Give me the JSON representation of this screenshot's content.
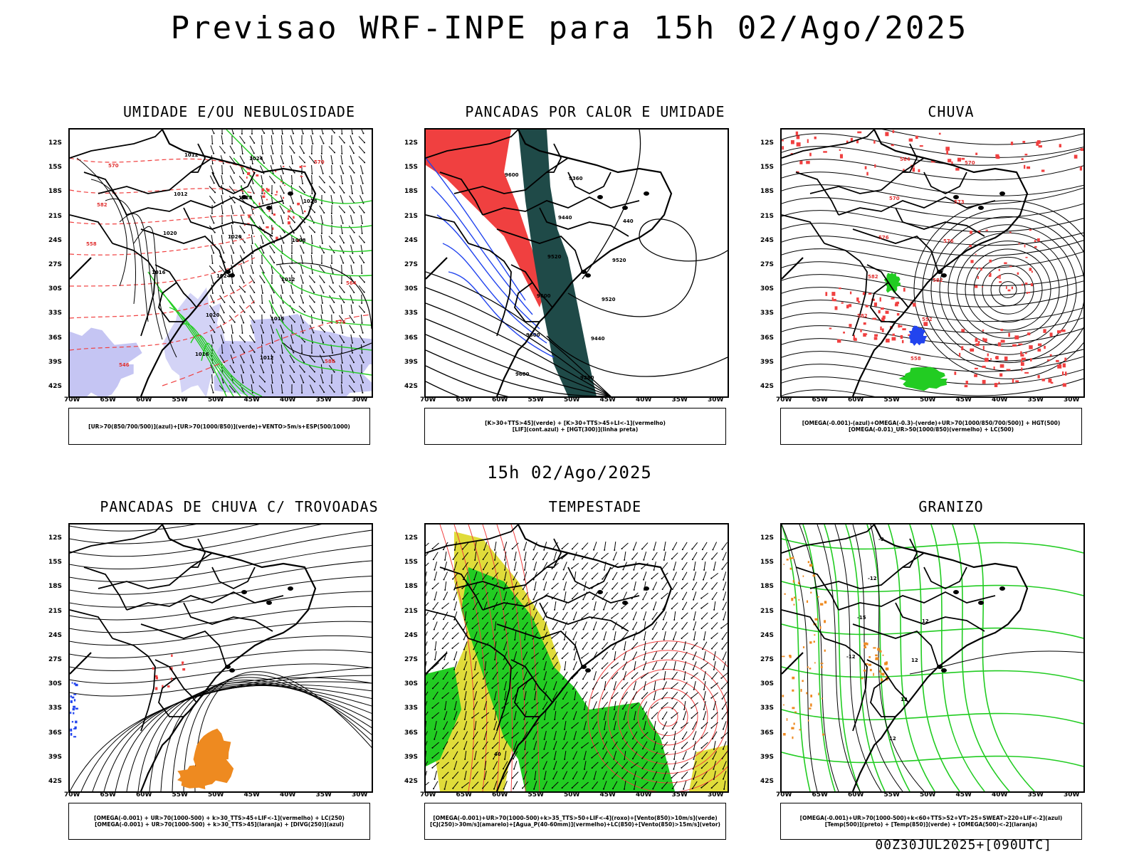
{
  "title": "Previsao WRF-INPE  para 15h 02/Ago/2025",
  "mid_title": "15h 02/Ago/2025",
  "footer": "00Z30JUL2025+[090UTC]",
  "axes": {
    "lat_labels": [
      "12S",
      "15S",
      "18S",
      "21S",
      "24S",
      "27S",
      "30S",
      "33S",
      "36S",
      "39S",
      "42S"
    ],
    "lon_labels": [
      "70W",
      "65W",
      "60W",
      "55W",
      "50W",
      "45W",
      "40W",
      "35W",
      "30W"
    ]
  },
  "panels": [
    {
      "title": "UMIDADE E/OU NEBULOSIDADE",
      "legend": [
        "[UR>70(850/700/500)](azul)+[UR>70(1000/850)](verde)+VENTO>5m/s+ESP(500/1000)"
      ],
      "contour_labels": [
        "1016",
        "1020",
        "1012",
        "1012",
        "1016",
        "1020",
        "1024",
        "1020",
        "1028",
        "1024",
        "1012",
        "1016",
        "1012",
        "1008",
        "1028",
        "570",
        "588",
        "576",
        "564",
        "558",
        "582",
        "570",
        "546"
      ]
    },
    {
      "title": "PANCADAS POR CALOR E UMIDADE",
      "legend": [
        "[K>30+TTS>45](verde) + [K>30+TTS>45+LI<-1](vermelho)",
        "[LIF](cont.azul) + [HGT(300)](linha preta)"
      ],
      "contour_labels": [
        "9600",
        "9600",
        "9600",
        "9600",
        "9520",
        "9440",
        "9360",
        "9280",
        "9440",
        "9520",
        "9520",
        "440"
      ]
    },
    {
      "title": "CHUVA",
      "legend": [
        "[OMEGA(-0.001)-(azul)+OMEGA(-0.3)-(verde)+UR>70(1000/850/700/500)] + HGT(500)",
        "[OMEGA(-0.01)_UR>50(1000/850)(vermelho) + LC(500)"
      ],
      "contour_labels": [
        "582",
        "582",
        "576",
        "570",
        "564",
        "558",
        "552",
        "582",
        "576",
        "573",
        "570"
      ]
    },
    {
      "title": "PANCADAS DE CHUVA C/ TROVOADAS",
      "legend": [
        "[OMEGA(-0.001) + UR>70(1000-500) + k>30_TTS>45+LIF<-1](vermelho) + LC(250)",
        "[OMEGA(-0.001) + UR>70(1000-500) + k>30_TTS>45](laranja) + [DIVG(250)](azul)"
      ],
      "contour_labels": []
    },
    {
      "title": "TEMPESTADE",
      "legend": [
        "[OMEGA(-0.001)+UR>70(1000-500)+k>35_TTS>50+LIF<-4](roxo)+[Vento(850)>10m/s](verde)",
        "[CJ(250)>30m/s](amarelo)+[Agua_P(40-60mm)](vermelho)+LC(850)+[Vento(850)>15m/s](vetor)"
      ],
      "contour_labels": [
        "40"
      ]
    },
    {
      "title": "GRANIZO",
      "legend": [
        "[OMEGA(-0.001)+UR>70(1000-500)+k<60+TTS>52+VT>25+SWEAT>220+LIF<-2](azul)",
        "[Temp(500)](preto) + [Temp(850)](verde) + [OMEGA(500)<-2](laranja)"
      ],
      "contour_labels": [
        "-12",
        "-15",
        "-12",
        "-9",
        "12",
        "12",
        "12",
        "12"
      ]
    }
  ],
  "colors": {
    "blue_shade": "#b6b6f0",
    "green": "#22cc22",
    "red": "#f04040",
    "dark_teal": "#1f4a48",
    "yellow": "#e0dc3a",
    "orange": "#ee8a20",
    "blue": "#2244ee"
  }
}
